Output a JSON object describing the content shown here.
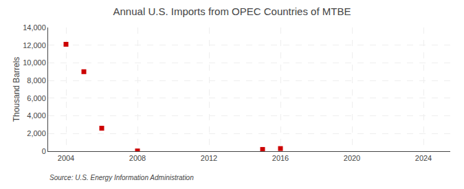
{
  "chart_data": {
    "type": "scatter",
    "title": "Annual U.S. Imports from OPEC Countries of MTBE",
    "ylabel": "Thousand Barrels",
    "source": "Source: U.S. Energy Information Administration",
    "x": [
      2004,
      2005,
      2006,
      2008,
      2015,
      2016
    ],
    "values": [
      12100,
      9000,
      2600,
      30,
      200,
      300
    ],
    "color": "#cc0000",
    "marker": "square",
    "xlim": [
      2003.0,
      2025.5
    ],
    "ylim": [
      0,
      14000
    ],
    "xticks": [
      2004,
      2008,
      2012,
      2016,
      2020,
      2024
    ],
    "yticks": [
      0,
      {
        "value": 2000,
        "label": "2,000"
      },
      {
        "value": 4000,
        "label": "4,000"
      },
      {
        "value": 6000,
        "label": "6,000"
      },
      {
        "value": 8000,
        "label": "8,000"
      },
      {
        "value": 10000,
        "label": "10,000"
      },
      {
        "value": 12000,
        "label": "12,000"
      },
      {
        "value": 14000,
        "label": "14,000"
      }
    ],
    "grid": true
  }
}
